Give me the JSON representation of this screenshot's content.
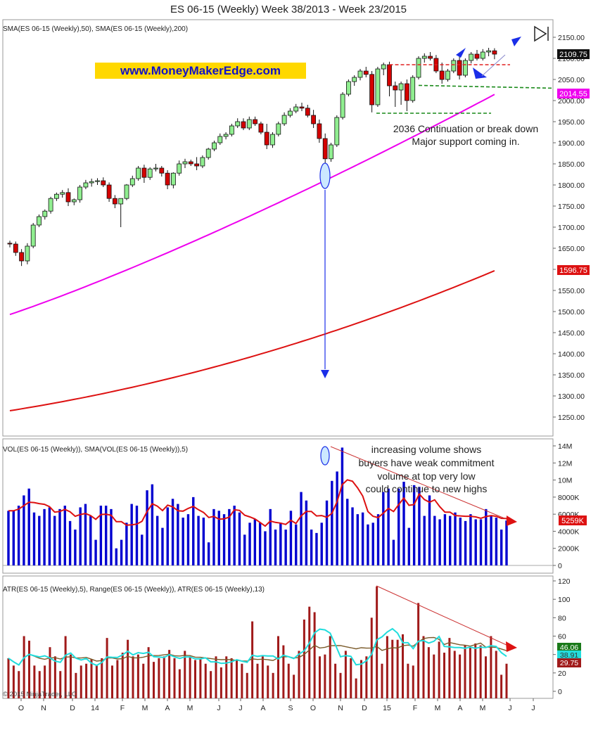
{
  "title": "ES 06-15 (Weekly)  Week 38/2013 - Week 23/2015",
  "watermark": "www.MoneyMakerEdge.com",
  "copyright": "© 2015 NinjaTrader, LLC",
  "colors": {
    "up": "#90ee90",
    "down": "#d40000",
    "sma50": "#ee00ee",
    "sma200": "#dd1111",
    "volume": "#0000d0",
    "volsma": "#dd1111",
    "range": "#a01a1a",
    "atr5": "#22dddd",
    "atr13": "#7a5a2a",
    "arrow": "#1a2ee8",
    "annot_line": "#cc3333",
    "support_red": "#e02020",
    "support_green": "#1a8a1a",
    "highlight": "#ffd800"
  },
  "panels": {
    "price": {
      "label": "SMA(ES 06-15 (Weekly),50), SMA(ES 06-15 (Weekly),200)",
      "last_price": "2109.75",
      "sma50_last": "2014.55",
      "sma200_last": "1596.75",
      "annotations": [
        "2036 Continuation or break down",
        "Major support coming in."
      ]
    },
    "volume": {
      "label": "VOL(ES 06-15 (Weekly)), SMA(VOL(ES 06-15 (Weekly)),5)",
      "last": "5259K",
      "annotations": [
        "increasing volume shows",
        "buyers have weak commitment",
        "volume at top very low",
        "could continue to new highs"
      ]
    },
    "atr": {
      "label": "ATR(ES 06-15 (Weekly),5), Range(ES 06-15 (Weekly)), ATR(ES 06-15 (Weekly),13)",
      "atr5_last": "38.91",
      "atr13_last": "46.06",
      "range_last": "29.75"
    }
  },
  "chart_data": [
    {
      "type": "candlestick",
      "title": "ES 06-15 (Weekly)  Week 38/2013 - Week 23/2015",
      "x_tick_labels": [
        "O",
        "N",
        "D",
        "14",
        "F",
        "M",
        "A",
        "M",
        "J",
        "J",
        "A",
        "S",
        "O",
        "N",
        "D",
        "15",
        "F",
        "M",
        "A",
        "M",
        "J",
        "J"
      ],
      "ylim": [
        1200,
        2175
      ],
      "y_ticks": [
        1250,
        1300,
        1350,
        1400,
        1450,
        1500,
        1550,
        1600,
        1650,
        1700,
        1750,
        1800,
        1850,
        1900,
        1950,
        2000,
        2050,
        2100,
        2150
      ],
      "ohlc": [
        [
          1662,
          1668,
          1652,
          1660
        ],
        [
          1660,
          1666,
          1632,
          1640
        ],
        [
          1640,
          1648,
          1608,
          1620
        ],
        [
          1620,
          1662,
          1612,
          1655
        ],
        [
          1655,
          1710,
          1650,
          1705
        ],
        [
          1705,
          1730,
          1700,
          1725
        ],
        [
          1725,
          1742,
          1718,
          1738
        ],
        [
          1738,
          1772,
          1732,
          1768
        ],
        [
          1768,
          1782,
          1762,
          1778
        ],
        [
          1778,
          1788,
          1770,
          1782
        ],
        [
          1782,
          1792,
          1750,
          1760
        ],
        [
          1760,
          1768,
          1752,
          1765
        ],
        [
          1765,
          1800,
          1758,
          1795
        ],
        [
          1795,
          1812,
          1790,
          1805
        ],
        [
          1805,
          1815,
          1796,
          1808
        ],
        [
          1808,
          1816,
          1800,
          1810
        ],
        [
          1810,
          1818,
          1795,
          1800
        ],
        [
          1800,
          1806,
          1760,
          1768
        ],
        [
          1768,
          1776,
          1745,
          1755
        ],
        [
          1755,
          1768,
          1700,
          1768
        ],
        [
          1768,
          1802,
          1764,
          1800
        ],
        [
          1800,
          1822,
          1795,
          1815
        ],
        [
          1815,
          1845,
          1810,
          1840
        ],
        [
          1840,
          1848,
          1805,
          1818
        ],
        [
          1818,
          1842,
          1812,
          1838
        ],
        [
          1838,
          1850,
          1832,
          1840
        ],
        [
          1840,
          1845,
          1820,
          1828
        ],
        [
          1828,
          1835,
          1790,
          1800
        ],
        [
          1800,
          1830,
          1792,
          1828
        ],
        [
          1828,
          1858,
          1822,
          1850
        ],
        [
          1850,
          1862,
          1840,
          1855
        ],
        [
          1855,
          1860,
          1845,
          1850
        ],
        [
          1850,
          1866,
          1835,
          1845
        ],
        [
          1845,
          1870,
          1840,
          1865
        ],
        [
          1865,
          1888,
          1860,
          1885
        ],
        [
          1885,
          1905,
          1880,
          1900
        ],
        [
          1900,
          1922,
          1895,
          1915
        ],
        [
          1915,
          1925,
          1908,
          1920
        ],
        [
          1920,
          1945,
          1915,
          1940
        ],
        [
          1940,
          1958,
          1935,
          1950
        ],
        [
          1950,
          1958,
          1930,
          1935
        ],
        [
          1935,
          1962,
          1930,
          1955
        ],
        [
          1955,
          1962,
          1940,
          1945
        ],
        [
          1945,
          1950,
          1920,
          1925
        ],
        [
          1925,
          1945,
          1885,
          1895
        ],
        [
          1895,
          1925,
          1888,
          1920
        ],
        [
          1920,
          1950,
          1915,
          1945
        ],
        [
          1945,
          1972,
          1940,
          1965
        ],
        [
          1965,
          1982,
          1960,
          1975
        ],
        [
          1975,
          1992,
          1970,
          1985
        ],
        [
          1985,
          1995,
          1975,
          1982
        ],
        [
          1982,
          1990,
          1960,
          1965
        ],
        [
          1965,
          1978,
          1935,
          1945
        ],
        [
          1945,
          1955,
          1900,
          1910
        ],
        [
          1910,
          1922,
          1835,
          1862
        ],
        [
          1862,
          1900,
          1855,
          1895
        ],
        [
          1895,
          1965,
          1890,
          1960
        ],
        [
          1960,
          2020,
          1955,
          2015
        ],
        [
          2015,
          2050,
          2010,
          2045
        ],
        [
          2045,
          2060,
          2035,
          2055
        ],
        [
          2055,
          2075,
          2048,
          2070
        ],
        [
          2070,
          2080,
          2055,
          2062
        ],
        [
          2062,
          2070,
          1972,
          1990
        ],
        [
          1990,
          2080,
          1985,
          2075
        ],
        [
          2075,
          2090,
          2060,
          2085
        ],
        [
          2085,
          2092,
          2010,
          2035
        ],
        [
          2035,
          2045,
          1985,
          2025
        ],
        [
          2025,
          2045,
          1990,
          2040
        ],
        [
          2040,
          2050,
          1975,
          2000
        ],
        [
          2000,
          2060,
          1995,
          2055
        ],
        [
          2055,
          2105,
          2050,
          2100
        ],
        [
          2100,
          2112,
          2090,
          2105
        ],
        [
          2105,
          2115,
          2095,
          2100
        ],
        [
          2100,
          2108,
          2065,
          2070
        ],
        [
          2070,
          2090,
          2040,
          2050
        ],
        [
          2050,
          2075,
          2045,
          2070
        ],
        [
          2070,
          2100,
          2065,
          2095
        ],
        [
          2095,
          2110,
          2050,
          2060
        ],
        [
          2060,
          2100,
          2055,
          2095
        ],
        [
          2095,
          2115,
          2088,
          2110
        ],
        [
          2110,
          2120,
          2095,
          2100
        ],
        [
          2100,
          2122,
          2095,
          2115
        ],
        [
          2115,
          2125,
          2105,
          2118
        ],
        [
          2118,
          2124,
          2098,
          2110
        ]
      ],
      "series": [
        {
          "name": "SMA(ES 06-15 (Weekly),50)",
          "first": 1493,
          "last": 2014.55
        },
        {
          "name": "SMA(ES 06-15 (Weekly),200)",
          "first": 1265,
          "last": 1596.75
        }
      ],
      "annotations": [
        "2036 Continuation or break down",
        "Major support coming in."
      ],
      "levels": [
        2085,
        2036,
        1970
      ]
    },
    {
      "type": "bar",
      "title": "VOL(ES 06-15 (Weekly)), SMA(VOL(ES 06-15 (Weekly)),5)",
      "unit": "K",
      "ylim": [
        0,
        14000
      ],
      "y_ticks": [
        "0",
        "2000K",
        "4000K",
        "6000K",
        "8000K",
        "10M",
        "12M",
        "14M"
      ],
      "values": [
        6400,
        6400,
        7000,
        8200,
        9000,
        6200,
        5800,
        6600,
        6800,
        5800,
        6600,
        7000,
        5200,
        4200,
        6800,
        7200,
        5800,
        3000,
        7000,
        7000,
        6600,
        2000,
        3000,
        5000,
        7200,
        7000,
        3600,
        8800,
        9500,
        5800,
        4400,
        6800,
        7800,
        7200,
        5600,
        6000,
        8000,
        5800,
        5600,
        2700,
        6600,
        6400,
        6000,
        6600,
        7000,
        6200,
        3600,
        5000,
        5400,
        5000,
        4000,
        6600,
        4200,
        5000,
        4200,
        6400,
        4800,
        8600,
        7600,
        4200,
        3800,
        5000,
        7600,
        9900,
        11000,
        13800,
        7800,
        6800,
        6000,
        6200,
        4800,
        5000,
        6000,
        8600,
        9000,
        3000,
        9000,
        9800,
        4400,
        9400,
        9200,
        5800,
        8200,
        5800,
        5400,
        6000,
        5800,
        6200,
        5600,
        5200,
        6000,
        5400,
        5400,
        6600,
        5800,
        5600,
        4200,
        5259
      ],
      "series": [
        {
          "name": "SMA(VOL(ES 06-15 (Weekly)),5)",
          "last": 5259
        }
      ],
      "annotations": [
        "increasing volume shows",
        "buyers have weak commitment",
        "volume at top very low",
        "could continue to new highs"
      ]
    },
    {
      "type": "bar",
      "title": "ATR(ES 06-15 (Weekly),5), Range(ES 06-15 (Weekly)), ATR(ES 06-15 (Weekly),13)",
      "ylim": [
        -5,
        120
      ],
      "y_ticks": [
        0,
        20,
        40,
        60,
        80,
        100,
        120
      ],
      "values": [
        36,
        28,
        22,
        60,
        55,
        28,
        22,
        28,
        48,
        38,
        22,
        60,
        40,
        20,
        28,
        30,
        35,
        28,
        36,
        58,
        28,
        34,
        42,
        56,
        38,
        40,
        30,
        48,
        32,
        36,
        38,
        45,
        36,
        24,
        44,
        38,
        34,
        36,
        30,
        22,
        38,
        26,
        38,
        36,
        34,
        30,
        20,
        76,
        30,
        38,
        28,
        20,
        60,
        50,
        30,
        18,
        44,
        78,
        92,
        86,
        38,
        40,
        60,
        30,
        20,
        44,
        36,
        14,
        34,
        38,
        80,
        114,
        30,
        60,
        56,
        56,
        62,
        30,
        28,
        96,
        60,
        48,
        40,
        54,
        42,
        58,
        44,
        40,
        50,
        48,
        52,
        50,
        38,
        60,
        44,
        18,
        30
      ],
      "series": [
        {
          "name": "ATR(ES 06-15 (Weekly),5)",
          "last": 38.91
        },
        {
          "name": "ATR(ES 06-15 (Weekly),13)",
          "last": 46.06
        },
        {
          "name": "Range(ES 06-15 (Weekly))",
          "last": 29.75
        }
      ]
    }
  ]
}
